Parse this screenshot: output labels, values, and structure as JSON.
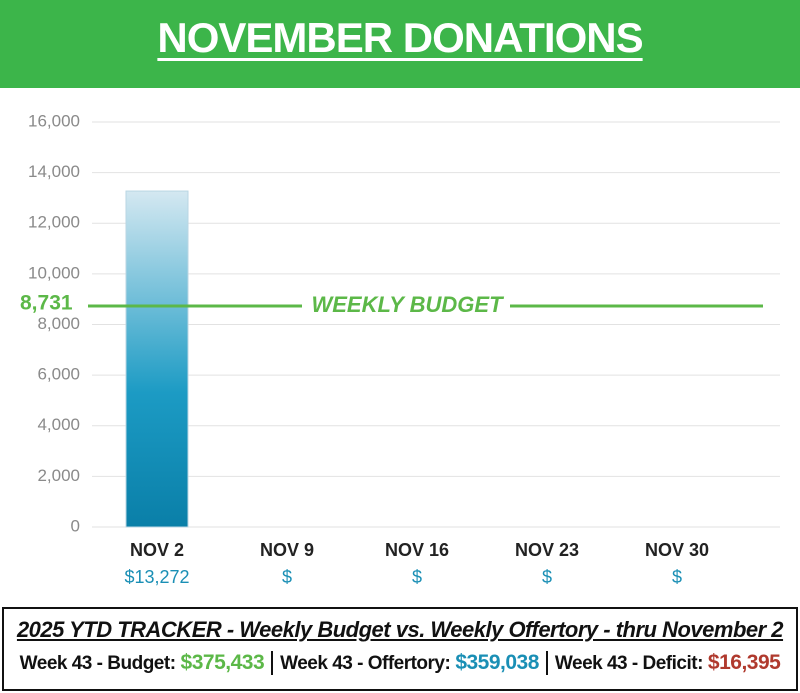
{
  "chart_data": {
    "type": "bar",
    "title": "NOVEMBER DONATIONS",
    "categories": [
      "NOV 2",
      "NOV 9",
      "NOV 16",
      "NOV 23",
      "NOV 30"
    ],
    "values": [
      13272,
      null,
      null,
      null,
      null
    ],
    "value_labels": [
      "$13,272",
      "$",
      "$",
      "$",
      "$"
    ],
    "color": "#0a84b0",
    "ylim": [
      0,
      16000
    ],
    "yticks": [
      0,
      {
        "value": 2000,
        "label": "2,000"
      },
      {
        "value": 4000,
        "label": "4,000"
      },
      {
        "value": 6000,
        "label": "6,000"
      },
      {
        "value": 8000,
        "label": "8,000"
      },
      {
        "value": 10000,
        "label": "10,000"
      },
      {
        "value": 12000,
        "label": "12,000"
      },
      {
        "value": 14000,
        "label": "14,000"
      },
      {
        "value": 16000,
        "label": "16,000"
      }
    ],
    "grid": true,
    "reference_line": {
      "value": 8731,
      "label": "8,731",
      "text": "WEEKLY BUDGET",
      "color": "#5cb848"
    }
  },
  "footer": {
    "title": "2025 YTD TRACKER  -  Weekly Budget  vs. Weekly Offertory  -  thru November 2",
    "items": [
      {
        "label": "Week 43 - Budget:",
        "value": "$375,433",
        "color": "#5cb848"
      },
      {
        "label": "Week 43 - Offertory:",
        "value": "$359,038",
        "color": "#1a8fb5"
      },
      {
        "label": "Week 43 - Deficit:",
        "value": "$16,395",
        "color": "#b03a2e"
      }
    ]
  }
}
